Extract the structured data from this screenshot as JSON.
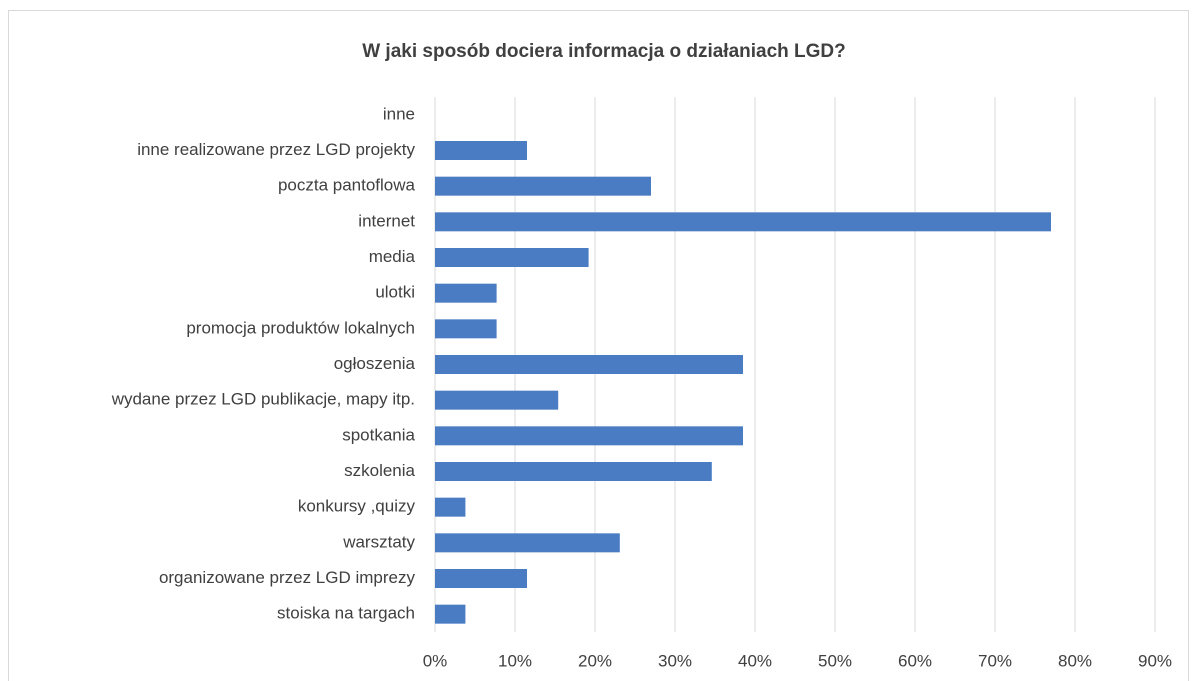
{
  "chart_data": {
    "type": "barh",
    "title": "W jaki sposób dociera informacja o działaniach LGD?",
    "categories": [
      "inne",
      "inne realizowane przez LGD projekty",
      "poczta pantoflowa",
      "internet",
      "media",
      "ulotki",
      "promocja produktów lokalnych",
      "ogłoszenia",
      "wydane przez LGD publikacje, mapy itp.",
      "spotkania",
      "szkolenia",
      "konkursy ,quizy",
      "warsztaty",
      "organizowane przez LGD imprezy",
      "stoiska na targach"
    ],
    "values": [
      0,
      11.5,
      27,
      77,
      19.2,
      7.7,
      7.7,
      38.5,
      15.4,
      38.5,
      34.6,
      3.8,
      23.1,
      11.5,
      3.8
    ],
    "color": "#4a7cc4",
    "xlim": [
      0,
      90
    ],
    "xticks": [
      {
        "value": 0,
        "label": "0%"
      },
      {
        "value": 10,
        "label": "10%"
      },
      {
        "value": 20,
        "label": "20%"
      },
      {
        "value": 30,
        "label": "30%"
      },
      {
        "value": 40,
        "label": "40%"
      },
      {
        "value": 50,
        "label": "50%"
      },
      {
        "value": 60,
        "label": "60%"
      },
      {
        "value": 70,
        "label": "70%"
      },
      {
        "value": 80,
        "label": "80%"
      },
      {
        "value": 90,
        "label": "90%"
      }
    ],
    "grid": true
  }
}
